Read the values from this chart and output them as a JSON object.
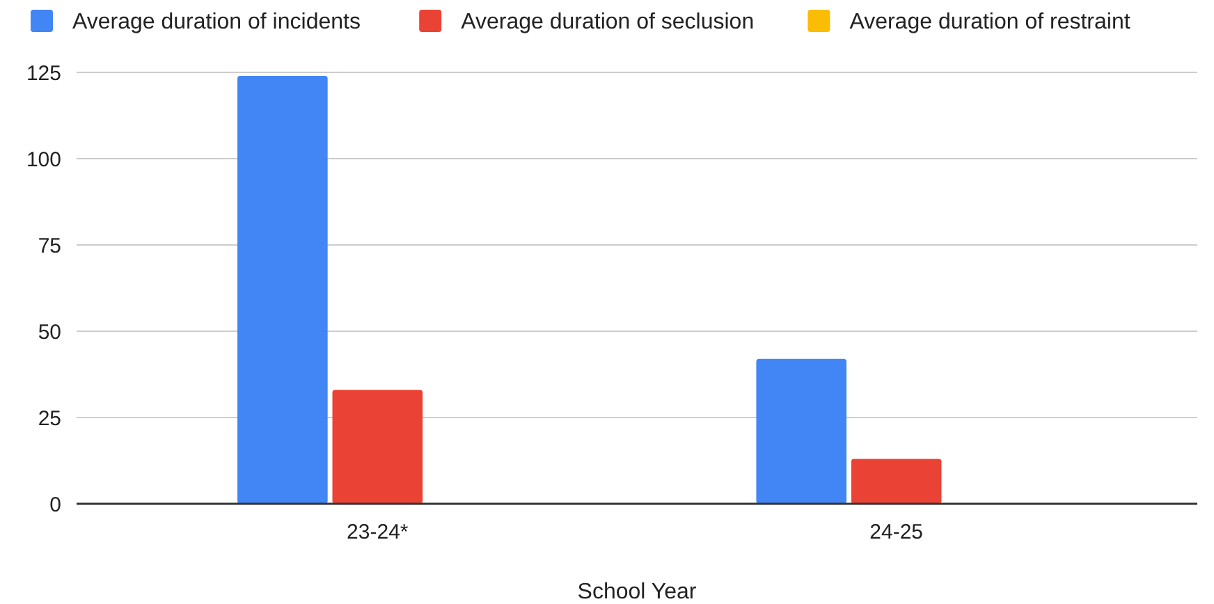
{
  "chart_data": {
    "type": "bar",
    "xlabel": "School Year",
    "categories": [
      "23-24*",
      "24-25"
    ],
    "series": [
      {
        "name": "Average duration of incidents",
        "color": "#4285f4",
        "values": [
          124,
          42
        ]
      },
      {
        "name": "Average duration of seclusion",
        "color": "#ea4335",
        "values": [
          33,
          13
        ]
      },
      {
        "name": "Average duration of restraint",
        "color": "#fbbc04",
        "values": [
          0,
          0
        ]
      }
    ],
    "ylim": [
      0,
      125
    ],
    "yticks": [
      0,
      25,
      50,
      75,
      100,
      125
    ],
    "grid": "y",
    "legend": "top left"
  }
}
